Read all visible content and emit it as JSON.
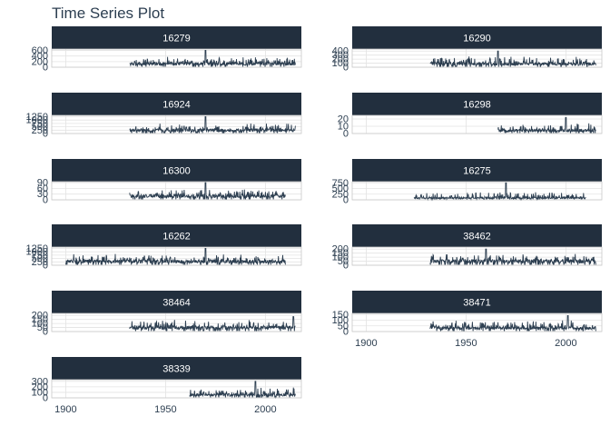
{
  "title": "Time Series Plot",
  "colors": {
    "strip": "#222f3e",
    "line": "#2c3e50",
    "grid": "#e3e3e3",
    "panel_border": "#c8c8c8",
    "text": "#2c3e50"
  },
  "chart_data": {
    "type": "line",
    "title": "Time Series Plot",
    "facet_layout": "2 columns, wrapped",
    "x_axis": {
      "ticks": [
        1900,
        1950,
        2000
      ],
      "range": [
        1893,
        2018
      ]
    },
    "grid": true,
    "legend": "none",
    "panels": [
      {
        "id": "16279",
        "yticks": [
          0,
          200,
          400,
          600
        ],
        "ylim": [
          0,
          650
        ],
        "x_start": 1932,
        "x_end": 2015,
        "base": 180,
        "spread": 200,
        "peak_year": 1970,
        "peak_value": 600
      },
      {
        "id": "16290",
        "yticks": [
          0,
          100,
          200,
          300,
          400
        ],
        "ylim": [
          0,
          450
        ],
        "x_start": 1932,
        "x_end": 2015,
        "base": 120,
        "spread": 160,
        "peak_year": 1966,
        "peak_value": 400
      },
      {
        "id": "16924",
        "yticks": [
          0,
          250,
          500,
          750,
          1000,
          1250
        ],
        "ylim": [
          0,
          1350
        ],
        "x_start": 1932,
        "x_end": 2015,
        "base": 350,
        "spread": 420,
        "peak_year": 1970,
        "peak_value": 1250
      },
      {
        "id": "16298",
        "yticks": [
          0,
          10,
          20
        ],
        "ylim": [
          0,
          25
        ],
        "x_start": 1966,
        "x_end": 2015,
        "base": 6,
        "spread": 9,
        "peak_year": 2000,
        "peak_value": 22
      },
      {
        "id": "16300",
        "yticks": [
          0,
          30,
          60,
          90
        ],
        "ylim": [
          0,
          95
        ],
        "x_start": 1932,
        "x_end": 2010,
        "base": 28,
        "spread": 32,
        "peak_year": 1970,
        "peak_value": 90
      },
      {
        "id": "16275",
        "yticks": [
          0,
          250,
          500,
          750
        ],
        "ylim": [
          0,
          800
        ],
        "x_start": 1924,
        "x_end": 2010,
        "base": 120,
        "spread": 220,
        "peak_year": 1970,
        "peak_value": 750
      },
      {
        "id": "16262",
        "yticks": [
          0,
          250,
          500,
          750,
          1000,
          1250
        ],
        "ylim": [
          0,
          1350
        ],
        "x_start": 1900,
        "x_end": 2010,
        "base": 420,
        "spread": 450,
        "peak_year": 1970,
        "peak_value": 1250
      },
      {
        "id": "38462",
        "yticks": [
          0,
          50,
          100,
          150,
          200
        ],
        "ylim": [
          0,
          225
        ],
        "x_start": 1932,
        "x_end": 2015,
        "base": 70,
        "spread": 80,
        "peak_year": 1960,
        "peak_value": 200
      },
      {
        "id": "38464",
        "yticks": [
          0,
          50,
          100,
          150,
          200
        ],
        "ylim": [
          0,
          225
        ],
        "x_start": 1932,
        "x_end": 2015,
        "base": 70,
        "spread": 80,
        "peak_year": 2014,
        "peak_value": 185
      },
      {
        "id": "38471",
        "yticks": [
          0,
          50,
          100,
          150
        ],
        "ylim": [
          0,
          160
        ],
        "x_start": 1932,
        "x_end": 2015,
        "base": 45,
        "spread": 55,
        "peak_year": 2001,
        "peak_value": 140
      },
      {
        "id": "38339",
        "yticks": [
          0,
          100,
          200,
          300
        ],
        "ylim": [
          0,
          330
        ],
        "x_start": 1962,
        "x_end": 2015,
        "base": 80,
        "spread": 120,
        "peak_year": 1995,
        "peak_value": 300
      }
    ]
  }
}
